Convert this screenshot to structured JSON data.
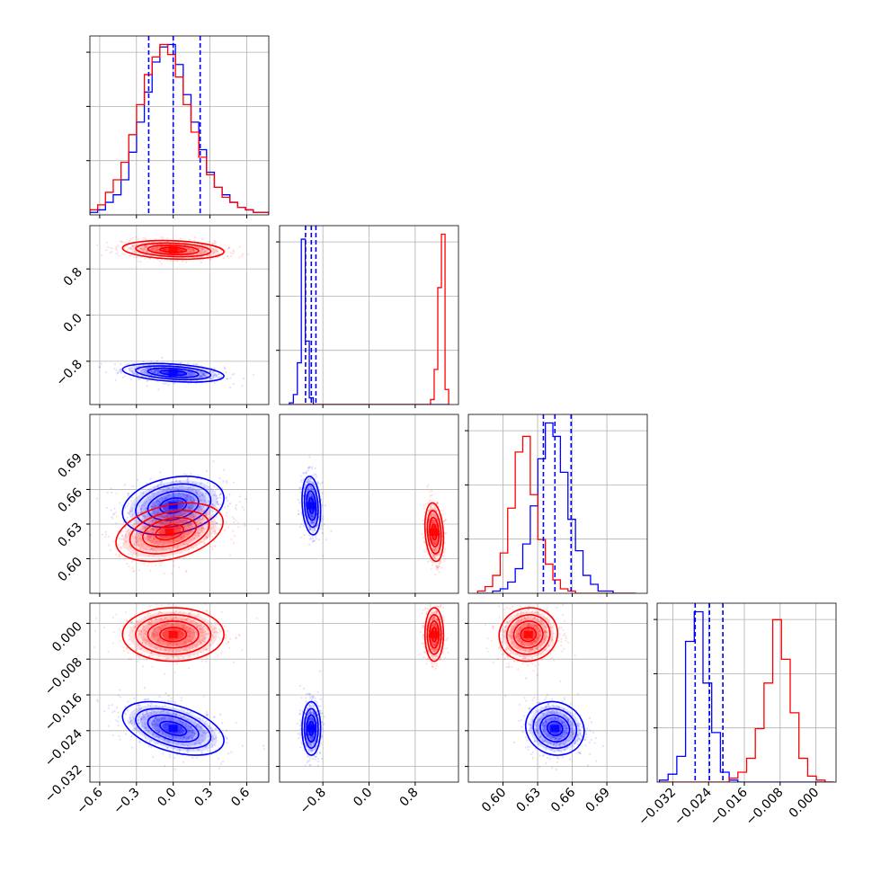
{
  "chart_data": {
    "type": "scatter",
    "subtype": "corner-plot",
    "grid": true,
    "series_colors": {
      "red": "#ff0000",
      "blue": "#0000ff"
    },
    "params": [
      {
        "range": [
          -0.68,
          0.78
        ],
        "ticks": [
          "−0.6",
          "−0.3",
          "0.0",
          "0.3",
          "0.6"
        ],
        "tick_values": [
          -0.6,
          -0.3,
          0.0,
          0.3,
          0.6
        ]
      },
      {
        "range": [
          -1.55,
          1.55
        ],
        "ticks": [
          "−0.8",
          "0.0",
          "0.8"
        ],
        "tick_values": [
          -0.8,
          0.0,
          0.8
        ]
      },
      {
        "range": [
          0.57,
          0.725
        ],
        "ticks": [
          "0.60",
          "0.63",
          "0.66",
          "0.69"
        ],
        "tick_values": [
          0.6,
          0.63,
          0.66,
          0.69
        ]
      },
      {
        "range": [
          -0.0355,
          0.0045
        ],
        "ticks": [
          "−0.032",
          "−0.024",
          "−0.016",
          "−0.008",
          "0.000"
        ],
        "tick_values": [
          -0.032,
          -0.024,
          -0.016,
          -0.008,
          0.0
        ]
      }
    ],
    "quantiles_blue": [
      [
        -0.2,
        0.0,
        0.22
      ],
      [
        -1.1,
        -1.0,
        -0.92
      ],
      [
        0.635,
        0.645,
        0.659
      ],
      [
        -0.027,
        -0.0238,
        -0.0208
      ]
    ],
    "histograms": [
      {
        "blue": [
          1,
          2,
          5,
          8,
          14,
          25,
          37,
          49,
          61,
          67,
          68,
          60,
          48,
          37,
          26,
          17,
          11,
          8,
          5,
          3,
          2,
          1,
          1
        ],
        "red": [
          2,
          4,
          9,
          14,
          21,
          32,
          44,
          56,
          63,
          68,
          64,
          55,
          44,
          33,
          23,
          16,
          11,
          7,
          5,
          3,
          2,
          1,
          1
        ]
      },
      {
        "blue": [
          1,
          6,
          25,
          99,
          38,
          4,
          0,
          0,
          0,
          0,
          0,
          0,
          0,
          0,
          0,
          0,
          0,
          0,
          0,
          0,
          0,
          0,
          0,
          0,
          0,
          0,
          0,
          0,
          0,
          0,
          0,
          0,
          0,
          0,
          0,
          0,
          0,
          0,
          0,
          0
        ],
        "red": [
          0,
          0,
          0,
          0,
          0,
          0,
          0,
          0,
          0,
          0,
          0,
          0,
          0,
          0,
          0,
          0,
          0,
          0,
          0,
          0,
          0,
          0,
          0,
          0,
          0,
          0,
          0,
          0,
          0,
          0,
          0,
          0,
          0,
          0,
          0,
          0,
          0,
          0,
          0,
          3,
          21,
          70,
          102,
          9
        ]
      },
      {
        "blue": [
          0,
          0,
          1,
          2,
          5,
          11,
          22,
          39,
          60,
          76,
          70,
          54,
          33,
          19,
          8,
          4,
          1,
          1,
          0,
          0,
          0
        ],
        "red": [
          1,
          3,
          8,
          18,
          38,
          63,
          70,
          44,
          24,
          13,
          6,
          2,
          1,
          0,
          0,
          0,
          0,
          0,
          0,
          0,
          0
        ]
      },
      {
        "blue": [
          1,
          4,
          13,
          71,
          86,
          50,
          25,
          5,
          1,
          0,
          0,
          0,
          0,
          0,
          0,
          0,
          0,
          0,
          0,
          0
        ],
        "red": [
          0,
          0,
          0,
          0,
          0,
          0,
          0,
          0,
          2,
          5,
          12,
          27,
          50,
          82,
          62,
          35,
          12,
          3,
          1,
          0
        ]
      }
    ],
    "hist_ranges": [
      [
        -0.68,
        0.78
      ],
      [
        -1.38,
        1.38
      ],
      [
        0.578,
        0.715
      ],
      [
        -0.035,
        0.004
      ]
    ],
    "panels_2d": [
      {
        "row": 1,
        "col": 0,
        "blue": {
          "mean": [
            0.0,
            -1.0
          ],
          "sd": [
            0.18,
            0.07
          ],
          "rho": -0.35
        },
        "red": {
          "mean": [
            0.0,
            1.13
          ],
          "sd": [
            0.18,
            0.07
          ],
          "rho": -0.2
        }
      },
      {
        "row": 2,
        "col": 0,
        "blue": {
          "mean": [
            0.0,
            0.646
          ],
          "sd": [
            0.18,
            0.011
          ],
          "rho": 0.25
        },
        "red": {
          "mean": [
            -0.03,
            0.623
          ],
          "sd": [
            0.19,
            0.011
          ],
          "rho": 0.35
        }
      },
      {
        "row": 2,
        "col": 1,
        "blue": {
          "mean": [
            -1.0,
            0.646
          ],
          "sd": [
            0.07,
            0.011
          ],
          "rho": -0.2
        },
        "red": {
          "mean": [
            1.13,
            0.623
          ],
          "sd": [
            0.07,
            0.011
          ],
          "rho": -0.2
        }
      },
      {
        "row": 3,
        "col": 0,
        "blue": {
          "mean": [
            0.0,
            -0.0235
          ],
          "sd": [
            0.18,
            0.0026
          ],
          "rho": -0.45
        },
        "red": {
          "mean": [
            0.0,
            -0.0025
          ],
          "sd": [
            0.18,
            0.0026
          ],
          "rho": 0.0
        }
      },
      {
        "row": 3,
        "col": 1,
        "blue": {
          "mean": [
            -1.0,
            -0.0235
          ],
          "sd": [
            0.07,
            0.0026
          ],
          "rho": 0.0
        },
        "red": {
          "mean": [
            1.13,
            -0.0025
          ],
          "sd": [
            0.07,
            0.0026
          ],
          "rho": 0.0
        }
      },
      {
        "row": 3,
        "col": 2,
        "blue": {
          "mean": [
            0.645,
            -0.0235
          ],
          "sd": [
            0.011,
            0.0026
          ],
          "rho": -0.1
        },
        "red": {
          "mean": [
            0.622,
            -0.0025
          ],
          "sd": [
            0.011,
            0.0026
          ],
          "rho": 0.05
        }
      }
    ]
  }
}
